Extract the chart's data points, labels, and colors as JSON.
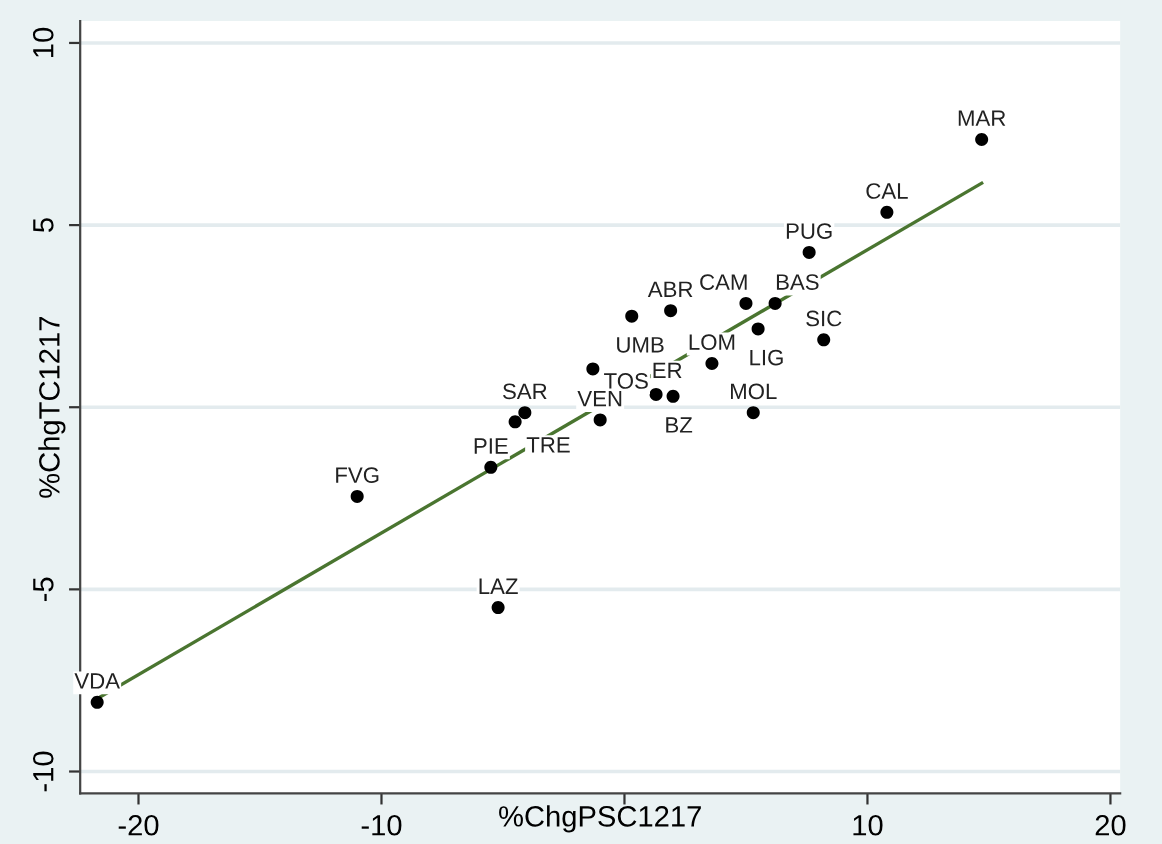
{
  "chart_data": {
    "type": "scatter",
    "xlabel": "%ChgPSC1217",
    "ylabel": "%ChgTC1217",
    "xlim": [
      -22.4,
      20.4
    ],
    "ylim": [
      -10.6,
      10.6
    ],
    "xticks": [
      -20,
      -10,
      {
        "value": 0,
        "label": null
      },
      10,
      20
    ],
    "yticks": [
      -10,
      -5,
      {
        "value": 0,
        "label": null
      },
      5,
      10
    ],
    "grid": "y",
    "legend": false,
    "marker": "circle",
    "series": [
      {
        "color": "#000000",
        "x": [
          -21.7,
          -11.0,
          -5.5,
          -4.1,
          -4.5,
          -5.2,
          -1.3,
          -1.0,
          0.3,
          1.9,
          1.3,
          2.0,
          3.6,
          5.0,
          6.2,
          5.5,
          5.3,
          8.2,
          7.6,
          10.8,
          14.7
        ],
        "values": [
          -8.1,
          -2.45,
          -1.65,
          -0.15,
          -0.4,
          -5.5,
          1.05,
          -0.35,
          2.5,
          2.65,
          0.35,
          0.3,
          1.2,
          2.85,
          2.85,
          2.15,
          -0.15,
          1.85,
          4.25,
          5.35,
          7.35
        ]
      },
      {
        "type": "line",
        "marker": "none",
        "color": "#4a7530",
        "x": [
          -21.7,
          14.7
        ],
        "values": [
          -8.0,
          6.15
        ]
      }
    ],
    "annotations": [
      {
        "text": "VDA",
        "x": -21.7,
        "y": -8.1
      },
      {
        "text": "FVG",
        "x": -11.0,
        "y": -2.45
      },
      {
        "text": "PIE",
        "x": -5.5,
        "y": -1.65
      },
      {
        "text": "SAR",
        "x": -4.1,
        "y": -0.15
      },
      {
        "text": "TRE",
        "x": -4.5,
        "y": -0.4
      },
      {
        "text": "LAZ",
        "x": -5.2,
        "y": -5.5
      },
      {
        "text": "TOS",
        "x": -1.3,
        "y": 1.05
      },
      {
        "text": "VEN",
        "x": -1.0,
        "y": -0.35
      },
      {
        "text": "UMB",
        "x": 0.3,
        "y": 2.5
      },
      {
        "text": "ABR",
        "x": 1.9,
        "y": 2.65
      },
      {
        "text": "ER",
        "x": 1.3,
        "y": 0.35
      },
      {
        "text": "BZ",
        "x": 2.0,
        "y": 0.3
      },
      {
        "text": "LOM",
        "x": 3.6,
        "y": 1.2
      },
      {
        "text": "CAM",
        "x": 5.0,
        "y": 2.85
      },
      {
        "text": "BAS",
        "x": 6.2,
        "y": 2.85
      },
      {
        "text": "LIG",
        "x": 5.5,
        "y": 2.15
      },
      {
        "text": "MOL",
        "x": 5.3,
        "y": -0.15
      },
      {
        "text": "SIC",
        "x": 8.2,
        "y": 1.85
      },
      {
        "text": "PUG",
        "x": 7.6,
        "y": 4.25
      },
      {
        "text": "CAL",
        "x": 10.8,
        "y": 5.35
      },
      {
        "text": "MAR",
        "x": 14.7,
        "y": 7.35
      }
    ]
  }
}
